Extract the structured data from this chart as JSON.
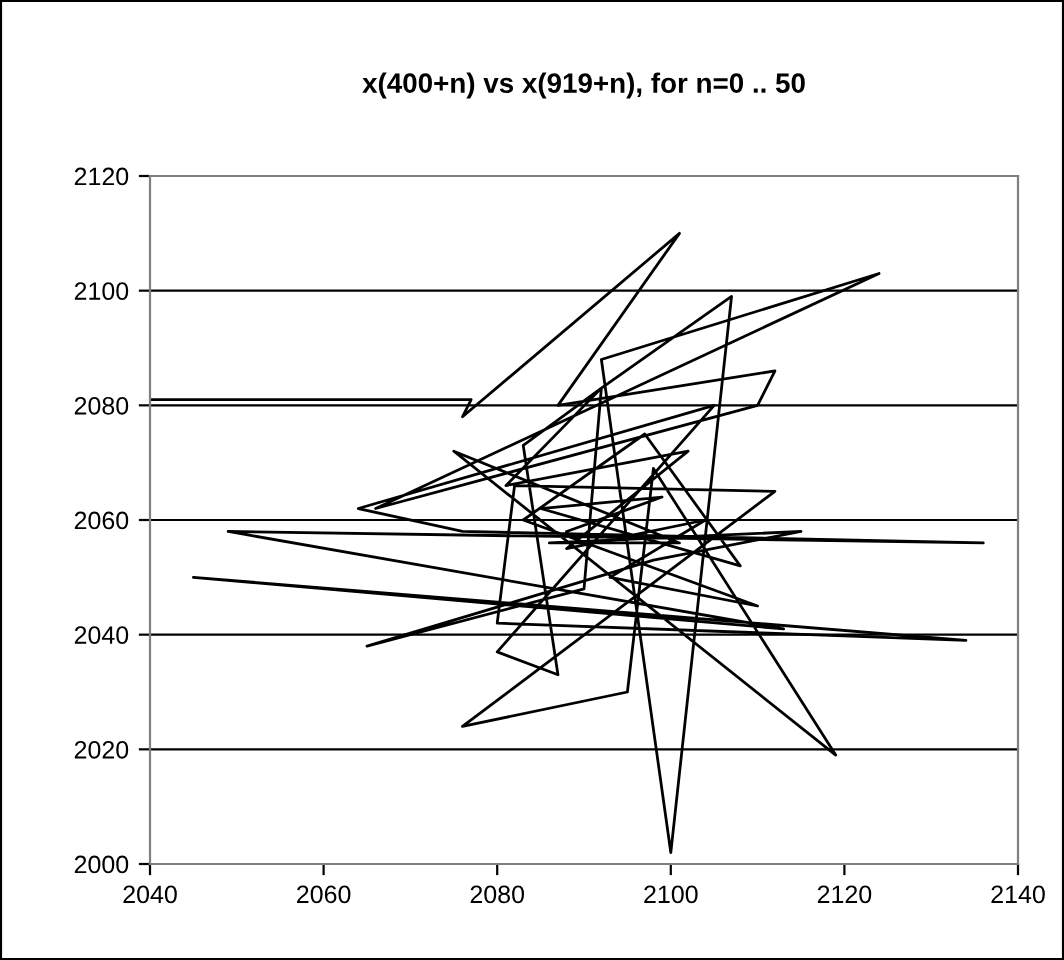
{
  "chart_data": {
    "type": "line",
    "title": "x(400+n) vs x(919+n), for n=0 .. 50",
    "x": [
      2040,
      2077,
      2076,
      2101,
      2087,
      2112,
      2110,
      2066,
      2124,
      2092,
      2100,
      2107,
      2092,
      2083,
      2087,
      2080,
      2105,
      2064,
      2076,
      2136,
      2049,
      2113,
      2045,
      2134,
      2080,
      2082,
      2112,
      2076,
      2095,
      2098,
      2119,
      2075,
      2101,
      2086,
      2115,
      2098,
      2065,
      2090,
      2092,
      2081,
      2102,
      2088,
      2104,
      2093,
      2110,
      2083,
      2097,
      2108,
      2085,
      2099,
      2088
    ],
    "series": [
      {
        "color": "#000000",
        "values": [
          2081,
          2081,
          2078,
          2110,
          2080,
          2086,
          2080,
          2062,
          2103,
          2088,
          2002,
          2099,
          2083,
          2073,
          2033,
          2037,
          2080,
          2062,
          2058,
          2056,
          2058,
          2041,
          2050,
          2039,
          2042,
          2066,
          2065,
          2024,
          2030,
          2069,
          2019,
          2072,
          2056,
          2056,
          2058,
          2053,
          2038,
          2048,
          2083,
          2066,
          2072,
          2055,
          2060,
          2050,
          2045,
          2060,
          2075,
          2052,
          2062,
          2064,
          2058
        ]
      }
    ],
    "xlim": [
      2040,
      2140
    ],
    "ylim": [
      2000,
      2120
    ],
    "xticks": [
      2040,
      2060,
      2080,
      2100,
      2120,
      2140
    ],
    "yticks": [
      2000,
      2020,
      2040,
      2060,
      2080,
      2100,
      2120
    ],
    "grid": "y",
    "marker": "none",
    "line_style": "solid",
    "legend": false
  }
}
